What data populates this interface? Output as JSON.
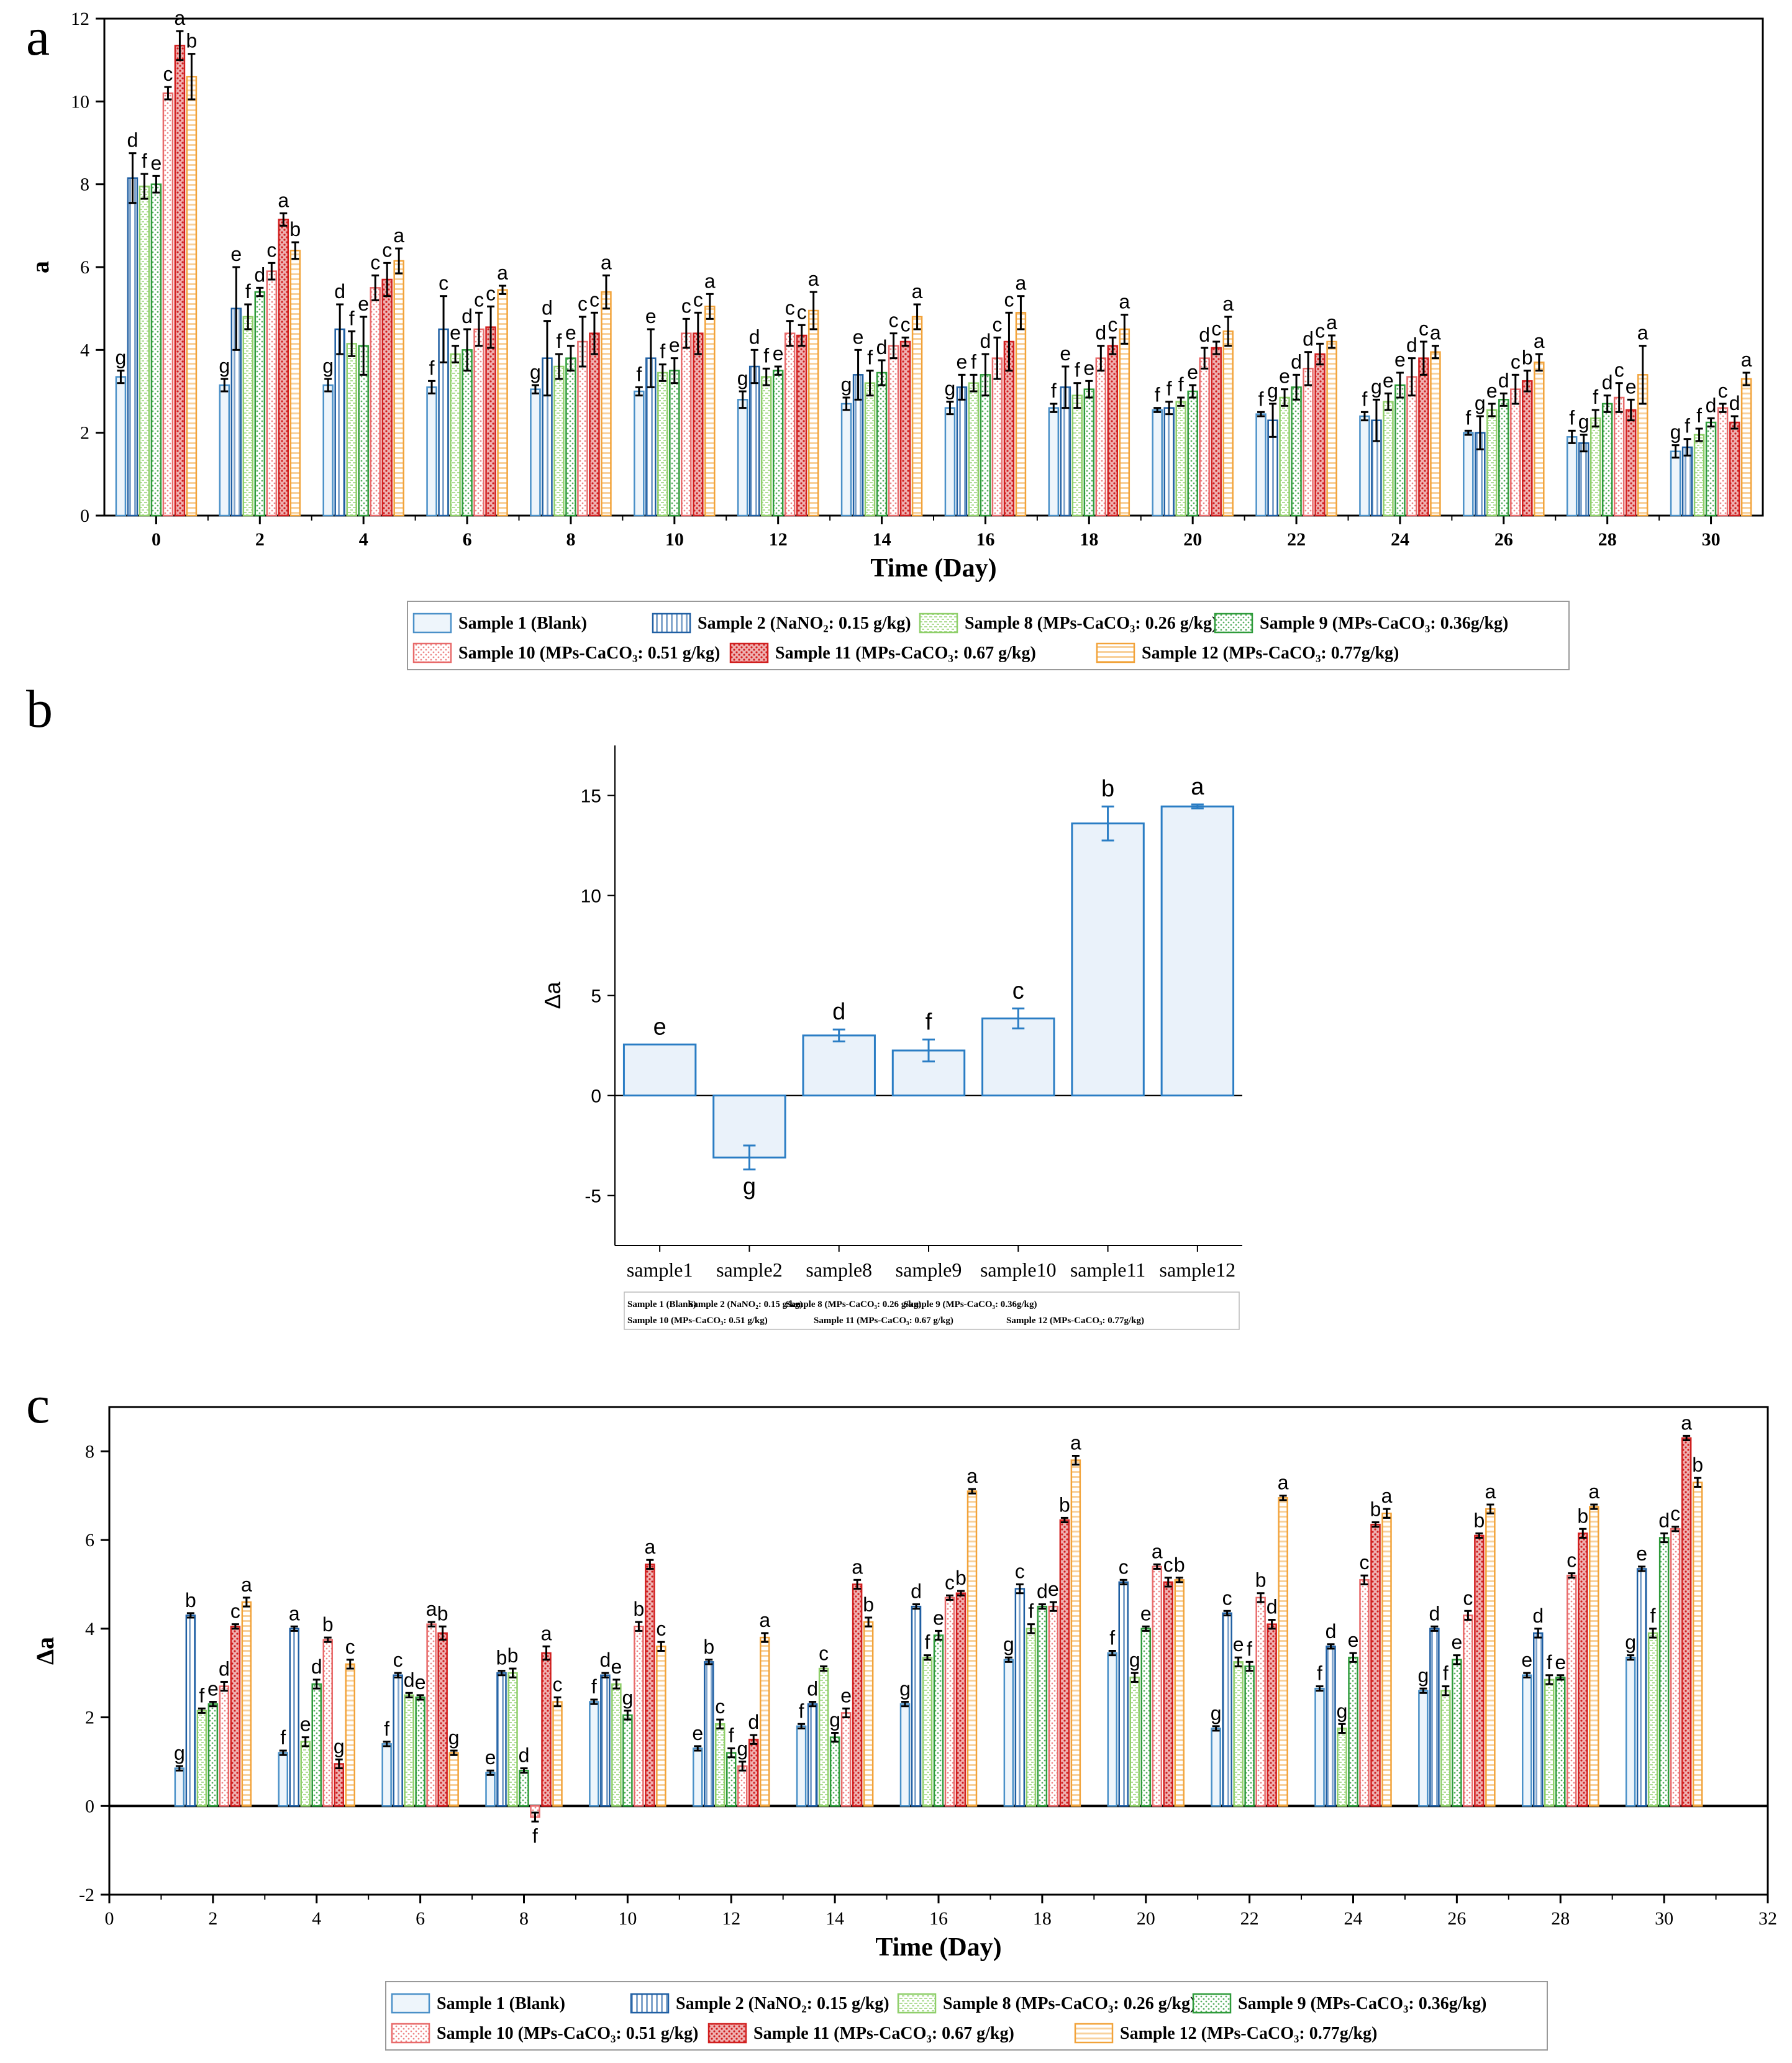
{
  "panel_labels": [
    "a",
    "b",
    "c"
  ],
  "legend_ac": [
    {
      "label": "Sample 1 (Blank)",
      "color": "#4a90c8",
      "pattern": "none"
    },
    {
      "label": "Sample 2 (NaNO₂: 0.15 g/kg)",
      "color": "#1f5fa3",
      "pattern": "vlines"
    },
    {
      "label": "Sample 8 (MPs-CaCO₃: 0.26 g/kg)",
      "color": "#8fcf6a",
      "pattern": "dashes"
    },
    {
      "label": "Sample 9 (MPs-CaCO₃: 0.36g/kg)",
      "color": "#2e9b3a",
      "pattern": "dots"
    },
    {
      "label": "Sample 10 (MPs-CaCO₃: 0.51 g/kg)",
      "color": "#e86a6a",
      "pattern": "dots"
    },
    {
      "label": "Sample 11 (MPs-CaCO₃: 0.67 g/kg)",
      "color": "#d11f1f",
      "pattern": "dense"
    },
    {
      "label": "Sample 12 (MPs-CaCO₃: 0.77g/kg)",
      "color": "#f2a33a",
      "pattern": "hlines"
    }
  ],
  "legend_b": [
    "Sample 1 (Blank)",
    "Sample 2 (NaNO₂: 0.15 g/kg)",
    "Sample 8 (MPs-CaCO₃: 0.26 g/kg)",
    "Sample 9 (MPs-CaCO₃: 0.36g/kg)",
    "Sample 10 (MPs-CaCO₃: 0.51 g/kg)",
    "Sample 11 (MPs-CaCO₃: 0.67 g/kg)",
    "Sample 12 (MPs-CaCO₃: 0.77g/kg)"
  ],
  "chart_data": [
    {
      "panel": "a",
      "type": "bar",
      "xlabel": "Time (Day)",
      "ylabel": "a",
      "ylim": [
        0,
        12
      ],
      "yticks": [
        0,
        2,
        4,
        6,
        8,
        10,
        12
      ],
      "categories": [
        "0",
        "2",
        "4",
        "6",
        "8",
        "10",
        "12",
        "14",
        "16",
        "18",
        "20",
        "22",
        "24",
        "26",
        "28",
        "30"
      ],
      "series": [
        {
          "name": "Sample 1 (Blank)",
          "values": [
            3.35,
            3.15,
            3.15,
            3.1,
            3.05,
            3.0,
            2.8,
            2.7,
            2.6,
            2.6,
            2.55,
            2.45,
            2.4,
            2.0,
            1.9,
            1.55
          ],
          "errors": [
            0.15,
            0.15,
            0.15,
            0.15,
            0.1,
            0.1,
            0.2,
            0.15,
            0.15,
            0.1,
            0.05,
            0.05,
            0.1,
            0.05,
            0.15,
            0.15
          ],
          "letters": [
            "g",
            "g",
            "g",
            "f",
            "g",
            "f",
            "g",
            "g",
            "g",
            "f",
            "f",
            "f",
            "f",
            "f",
            "f",
            "g"
          ]
        },
        {
          "name": "Sample 2 (NaNO₂: 0.15 g/kg)",
          "values": [
            8.15,
            5.0,
            4.5,
            4.5,
            3.8,
            3.8,
            3.6,
            3.4,
            3.1,
            3.1,
            2.6,
            2.3,
            2.3,
            2.0,
            1.75,
            1.65
          ],
          "errors": [
            0.6,
            1.0,
            0.6,
            0.8,
            0.9,
            0.7,
            0.4,
            0.6,
            0.3,
            0.5,
            0.15,
            0.4,
            0.5,
            0.4,
            0.2,
            0.2
          ],
          "letters": [
            "d",
            "e",
            "d",
            "c",
            "d",
            "e",
            "d",
            "e",
            "e",
            "e",
            "f",
            "g",
            "g",
            "g",
            "g",
            "f"
          ]
        },
        {
          "name": "Sample 8 (MPs-CaCO₃: 0.26 g/kg)",
          "values": [
            7.95,
            4.8,
            4.15,
            3.9,
            3.6,
            3.45,
            3.35,
            3.2,
            3.2,
            2.9,
            2.75,
            2.85,
            2.75,
            2.55,
            2.35,
            1.95
          ],
          "errors": [
            0.3,
            0.3,
            0.3,
            0.2,
            0.3,
            0.2,
            0.2,
            0.3,
            0.2,
            0.3,
            0.1,
            0.2,
            0.2,
            0.15,
            0.2,
            0.15
          ],
          "letters": [
            "f",
            "f",
            "f",
            "e",
            "f",
            "f",
            "f",
            "f",
            "f",
            "f",
            "f",
            "e",
            "e",
            "e",
            "f",
            "f"
          ]
        },
        {
          "name": "Sample 9 (MPs-CaCO₃: 0.36g/kg)",
          "values": [
            8.0,
            5.4,
            4.1,
            4.0,
            3.8,
            3.5,
            3.5,
            3.45,
            3.4,
            3.05,
            3.0,
            3.1,
            3.15,
            2.8,
            2.7,
            2.25
          ],
          "errors": [
            0.2,
            0.1,
            0.7,
            0.5,
            0.3,
            0.3,
            0.1,
            0.3,
            0.5,
            0.2,
            0.15,
            0.3,
            0.3,
            0.15,
            0.2,
            0.1
          ],
          "letters": [
            "e",
            "d",
            "e",
            "d",
            "e",
            "e",
            "e",
            "d",
            "d",
            "e",
            "e",
            "d",
            "e",
            "d",
            "d",
            "d"
          ]
        },
        {
          "name": "Sample 10 (MPs-CaCO₃: 0.51 g/kg)",
          "values": [
            10.2,
            5.9,
            5.5,
            4.5,
            4.2,
            4.4,
            4.4,
            4.1,
            3.8,
            3.8,
            3.8,
            3.55,
            3.35,
            3.05,
            2.85,
            2.6
          ],
          "errors": [
            0.15,
            0.2,
            0.3,
            0.4,
            0.6,
            0.35,
            0.3,
            0.3,
            0.5,
            0.3,
            0.25,
            0.4,
            0.45,
            0.35,
            0.35,
            0.1
          ],
          "letters": [
            "c",
            "c",
            "c",
            "c",
            "c",
            "c",
            "c",
            "c",
            "c",
            "d",
            "d",
            "d",
            "d",
            "c",
            "c",
            "c"
          ]
        },
        {
          "name": "Sample 11 (MPs-CaCO₃: 0.67 g/kg)",
          "values": [
            11.35,
            7.15,
            5.7,
            4.55,
            4.4,
            4.4,
            4.35,
            4.2,
            4.2,
            4.1,
            4.05,
            3.9,
            3.8,
            3.25,
            2.55,
            2.25
          ],
          "errors": [
            0.35,
            0.15,
            0.4,
            0.5,
            0.5,
            0.5,
            0.25,
            0.1,
            0.7,
            0.2,
            0.15,
            0.25,
            0.4,
            0.25,
            0.25,
            0.15
          ],
          "letters": [
            "a",
            "a",
            "c",
            "c",
            "c",
            "c",
            "c",
            "c",
            "c",
            "c",
            "c",
            "c",
            "c",
            "b",
            "e",
            "d"
          ]
        },
        {
          "name": "Sample 12 (MPs-CaCO₃: 0.77g/kg)",
          "values": [
            10.6,
            6.4,
            6.15,
            5.45,
            5.4,
            5.05,
            4.95,
            4.8,
            4.9,
            4.5,
            4.45,
            4.2,
            3.95,
            3.7,
            3.4,
            3.3
          ],
          "errors": [
            0.55,
            0.2,
            0.3,
            0.1,
            0.4,
            0.3,
            0.45,
            0.3,
            0.4,
            0.35,
            0.35,
            0.15,
            0.15,
            0.2,
            0.7,
            0.15
          ],
          "letters": [
            "b",
            "b",
            "a",
            "a",
            "a",
            "a",
            "a",
            "a",
            "a",
            "a",
            "a",
            "a",
            "a",
            "a",
            "a",
            "a"
          ]
        }
      ]
    },
    {
      "panel": "b",
      "type": "bar",
      "ylabel": "Δa",
      "ylim": [
        -7.5,
        17.5
      ],
      "yticks": [
        -5,
        0,
        5,
        10,
        15
      ],
      "categories": [
        "sample1",
        "sample2",
        "sample8",
        "sample9",
        "sample10",
        "sample11",
        "sample12"
      ],
      "values": [
        2.55,
        -3.1,
        3.0,
        2.25,
        3.85,
        13.6,
        14.45
      ],
      "errors": [
        0.0,
        0.6,
        0.3,
        0.55,
        0.5,
        0.85,
        0.1
      ],
      "letters": [
        "e",
        "g",
        "d",
        "f",
        "c",
        "b",
        "a"
      ]
    },
    {
      "panel": "c",
      "type": "bar",
      "xlabel": "Time (Day)",
      "ylabel": "Δa",
      "ylim": [
        -2,
        9
      ],
      "yticks": [
        -2,
        0,
        2,
        4,
        6,
        8
      ],
      "xlim": [
        0,
        32
      ],
      "xticks": [
        0,
        2,
        4,
        6,
        8,
        10,
        12,
        14,
        16,
        18,
        20,
        22,
        24,
        26,
        28,
        30,
        32
      ],
      "categories": [
        "2",
        "4",
        "6",
        "8",
        "10",
        "12",
        "14",
        "16",
        "18",
        "20",
        "22",
        "24",
        "26",
        "28",
        "30"
      ],
      "series": [
        {
          "name": "Sample 1 (Blank)",
          "values": [
            0.85,
            1.2,
            1.4,
            0.75,
            2.35,
            1.3,
            1.8,
            2.3,
            3.3,
            3.45,
            1.75,
            2.65,
            2.6,
            2.95,
            3.35
          ],
          "errors": [
            0.05,
            0.05,
            0.05,
            0.05,
            0.05,
            0.05,
            0.05,
            0.05,
            0.05,
            0.05,
            0.05,
            0.05,
            0.05,
            0.05,
            0.05
          ],
          "letters": [
            "g",
            "f",
            "f",
            "e",
            "f",
            "e",
            "f",
            "g",
            "g",
            "f",
            "g",
            "f",
            "g",
            "e",
            "g"
          ]
        },
        {
          "name": "Sample 2 (NaNO₂: 0.15 g/kg)",
          "values": [
            4.3,
            4.0,
            2.95,
            3.0,
            2.95,
            3.25,
            2.3,
            4.5,
            4.9,
            5.05,
            4.35,
            3.6,
            4.0,
            3.9,
            5.35
          ],
          "errors": [
            0.05,
            0.05,
            0.05,
            0.05,
            0.05,
            0.05,
            0.05,
            0.05,
            0.1,
            0.05,
            0.05,
            0.05,
            0.05,
            0.1,
            0.05
          ],
          "letters": [
            "b",
            "a",
            "c",
            "b",
            "d",
            "b",
            "d",
            "d",
            "c",
            "c",
            "c",
            "d",
            "d",
            "d",
            "e"
          ]
        },
        {
          "name": "Sample 8 (MPs-CaCO₃: 0.26 g/kg)",
          "values": [
            2.15,
            1.45,
            2.5,
            3.0,
            2.75,
            1.85,
            3.1,
            3.35,
            4.0,
            2.9,
            3.25,
            1.75,
            2.6,
            2.85,
            3.9
          ],
          "errors": [
            0.05,
            0.1,
            0.05,
            0.1,
            0.1,
            0.1,
            0.05,
            0.05,
            0.1,
            0.1,
            0.1,
            0.1,
            0.1,
            0.1,
            0.1
          ],
          "letters": [
            "f",
            "e",
            "d",
            "b",
            "e",
            "c",
            "c",
            "f",
            "f",
            "g",
            "e",
            "g",
            "f",
            "f",
            "f"
          ]
        },
        {
          "name": "Sample 9 (MPs-CaCO₃: 0.36g/kg)",
          "values": [
            2.3,
            2.75,
            2.45,
            0.8,
            2.05,
            1.2,
            1.55,
            3.85,
            4.5,
            4.0,
            3.15,
            3.35,
            3.3,
            2.9,
            6.05
          ],
          "errors": [
            0.05,
            0.1,
            0.05,
            0.05,
            0.1,
            0.1,
            0.1,
            0.1,
            0.05,
            0.05,
            0.1,
            0.1,
            0.1,
            0.05,
            0.1
          ],
          "letters": [
            "e",
            "d",
            "e",
            "d",
            "g",
            "f",
            "g",
            "e",
            "d",
            "e",
            "f",
            "e",
            "e",
            "e",
            "d"
          ]
        },
        {
          "name": "Sample 10 (MPs-CaCO₃: 0.51 g/kg)",
          "values": [
            2.7,
            3.75,
            4.1,
            -0.25,
            4.05,
            0.9,
            2.1,
            4.7,
            4.5,
            5.4,
            4.7,
            5.1,
            4.3,
            5.2,
            6.25
          ],
          "errors": [
            0.1,
            0.05,
            0.05,
            0.1,
            0.1,
            0.1,
            0.1,
            0.05,
            0.1,
            0.05,
            0.1,
            0.1,
            0.1,
            0.05,
            0.05
          ],
          "letters": [
            "d",
            "b",
            "a",
            "f",
            "b",
            "g",
            "e",
            "c",
            "e",
            "a",
            "b",
            "c",
            "c",
            "c",
            "c"
          ]
        },
        {
          "name": "Sample 11 (MPs-CaCO₃: 0.67 g/kg)",
          "values": [
            4.05,
            0.95,
            3.9,
            3.45,
            5.45,
            1.5,
            5.0,
            4.8,
            6.45,
            5.05,
            4.1,
            6.35,
            6.1,
            6.15,
            8.3
          ],
          "errors": [
            0.05,
            0.1,
            0.15,
            0.15,
            0.1,
            0.1,
            0.1,
            0.05,
            0.05,
            0.1,
            0.1,
            0.05,
            0.05,
            0.1,
            0.05
          ],
          "letters": [
            "c",
            "g",
            "b",
            "a",
            "a",
            "d",
            "a",
            "b",
            "b",
            "c",
            "d",
            "b",
            "b",
            "b",
            "a"
          ]
        },
        {
          "name": "Sample 12 (MPs-CaCO₃: 0.77g/kg)",
          "values": [
            4.6,
            3.2,
            1.2,
            2.35,
            3.6,
            3.8,
            4.15,
            7.1,
            7.8,
            5.1,
            6.95,
            6.6,
            6.7,
            6.75,
            7.3
          ],
          "errors": [
            0.1,
            0.1,
            0.05,
            0.1,
            0.1,
            0.1,
            0.1,
            0.05,
            0.1,
            0.05,
            0.05,
            0.1,
            0.1,
            0.05,
            0.1
          ],
          "letters": [
            "a",
            "c",
            "g",
            "c",
            "c",
            "a",
            "b",
            "a",
            "a",
            "b",
            "a",
            "a",
            "a",
            "a",
            "b"
          ]
        }
      ]
    }
  ]
}
